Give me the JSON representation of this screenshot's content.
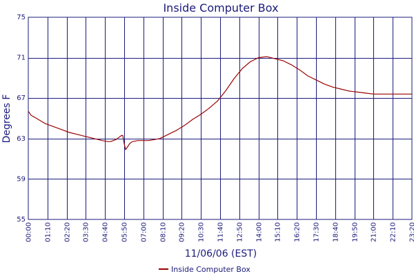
{
  "chart_data": {
    "type": "line",
    "title": "Inside Computer Box",
    "xlabel": "11/06/06 (EST)",
    "ylabel": "Degrees F",
    "ylim": [
      55,
      75
    ],
    "yticks": [
      55,
      59,
      63,
      67,
      71,
      75
    ],
    "xlim_minutes": [
      0,
      1400
    ],
    "xtick_labels": [
      "00:00",
      "01:10",
      "02:20",
      "03:30",
      "04:40",
      "05:50",
      "07:00",
      "08:10",
      "09:20",
      "10:30",
      "11:40",
      "12:50",
      "14:00",
      "15:10",
      "16:20",
      "17:30",
      "18:40",
      "19:50",
      "21:00",
      "22:10",
      "23:20"
    ],
    "grid": true,
    "legend_position": "bottom-center",
    "colors": {
      "grid": "#1a1a7a",
      "text": "#1a1a7a",
      "series": "#990000"
    },
    "series": [
      {
        "name": "Inside Computer Box",
        "x_minutes": [
          0,
          10,
          30,
          60,
          90,
          120,
          150,
          180,
          210,
          240,
          270,
          290,
          300,
          310,
          320,
          330,
          340,
          345,
          350,
          355,
          360,
          365,
          370,
          380,
          400,
          420,
          440,
          460,
          480,
          510,
          540,
          570,
          600,
          630,
          660,
          690,
          720,
          750,
          780,
          810,
          840,
          870,
          900,
          930,
          960,
          990,
          1020,
          1050,
          1080,
          1110,
          1140,
          1170,
          1200,
          1230,
          1260,
          1290,
          1320,
          1350,
          1380,
          1400
        ],
        "y": [
          65.7,
          65.3,
          65.0,
          64.5,
          64.2,
          63.9,
          63.6,
          63.4,
          63.2,
          63.0,
          62.8,
          62.7,
          62.7,
          62.8,
          62.9,
          63.1,
          63.3,
          63.3,
          62.5,
          61.9,
          62.1,
          62.3,
          62.5,
          62.7,
          62.8,
          62.8,
          62.8,
          62.9,
          63.0,
          63.4,
          63.8,
          64.3,
          64.9,
          65.4,
          66.0,
          66.7,
          67.7,
          68.9,
          69.9,
          70.6,
          71.0,
          71.1,
          70.9,
          70.7,
          70.3,
          69.8,
          69.2,
          68.8,
          68.4,
          68.1,
          67.9,
          67.7,
          67.6,
          67.5,
          67.4,
          67.4,
          67.4,
          67.4,
          67.4,
          67.4
        ]
      }
    ]
  }
}
